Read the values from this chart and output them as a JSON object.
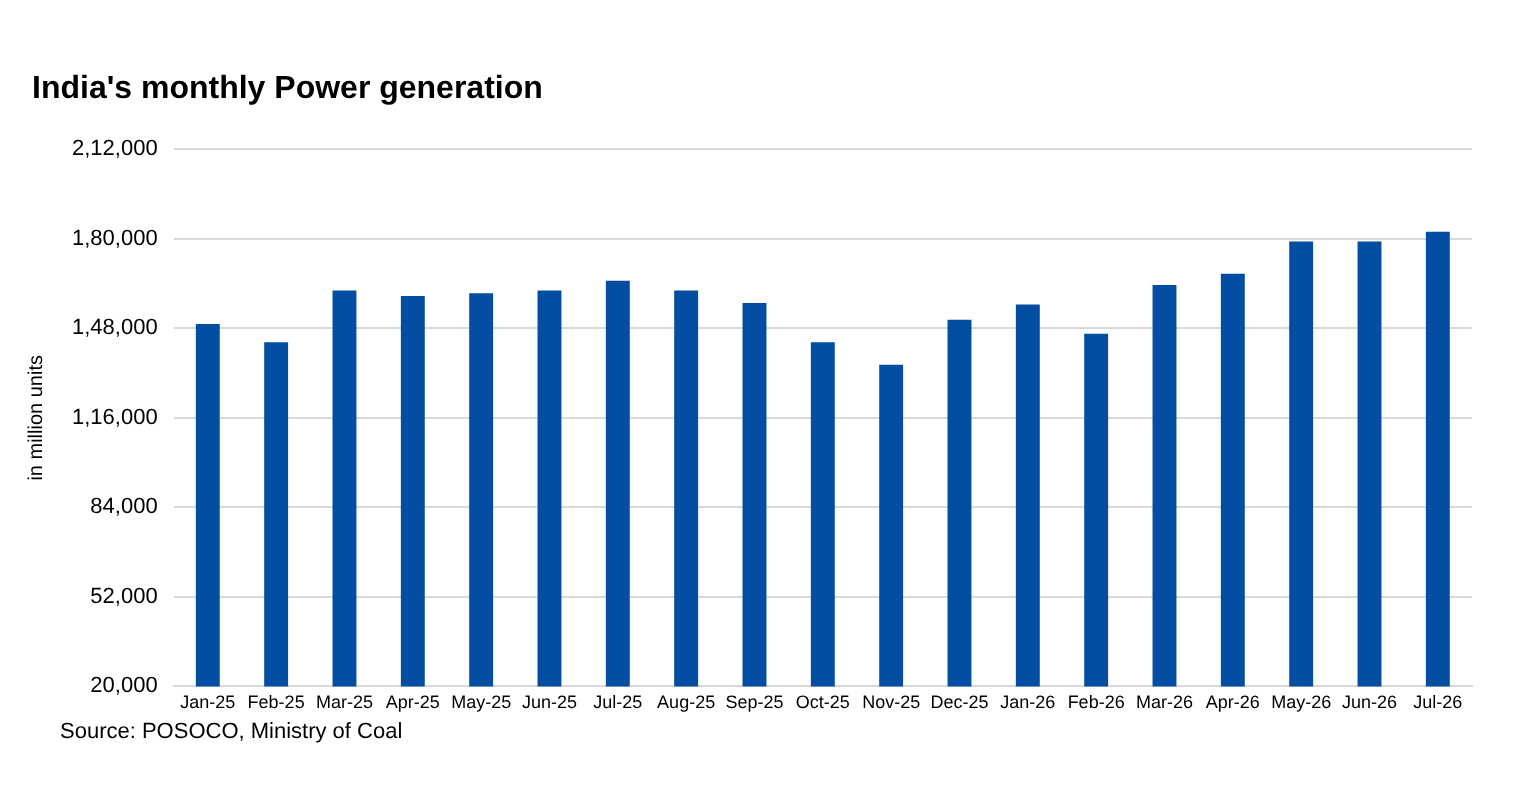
{
  "chart_data": {
    "type": "bar",
    "title": "India's monthly Power generation",
    "ylabel": "in million units",
    "categories": [
      "Jan-25",
      "Feb-25",
      "Mar-25",
      "Apr-25",
      "May-25",
      "Jun-25",
      "Jul-25",
      "Aug-25",
      "Sep-25",
      "Oct-25",
      "Nov-25",
      "Dec-25",
      "Jan-26",
      "Feb-26",
      "Mar-26",
      "Apr-26",
      "May-26",
      "Jun-26",
      "Jul-26"
    ],
    "values": [
      149500,
      143000,
      161500,
      159500,
      160500,
      161500,
      165000,
      161500,
      157000,
      143000,
      135000,
      151000,
      156500,
      146000,
      163500,
      167500,
      179000,
      179000,
      182500
    ],
    "color": "#034ea2",
    "ylim": [
      20000,
      212000
    ],
    "yticks": [
      {
        "value": 20000,
        "label": "20,000"
      },
      {
        "value": 52000,
        "label": "52,000"
      },
      {
        "value": 84000,
        "label": "84,000"
      },
      {
        "value": 116000,
        "label": "1,16,000"
      },
      {
        "value": 148000,
        "label": "1,48,000"
      },
      {
        "value": 180000,
        "label": "1,80,000"
      },
      {
        "value": 212000,
        "label": "2,12,000"
      }
    ],
    "grid": "y",
    "annotations": [
      "Source: POSOCO, Ministry of Coal"
    ]
  }
}
